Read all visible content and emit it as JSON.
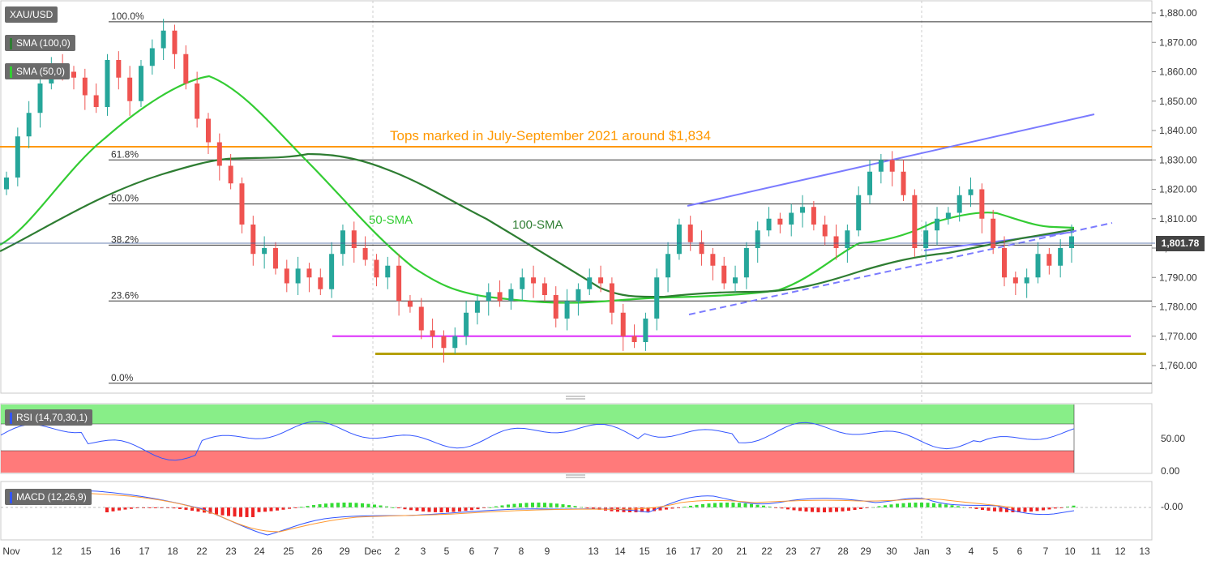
{
  "symbol": "XAU/USD",
  "indicators": {
    "sma100": "SMA (100,0)",
    "sma50": "SMA (50,0)",
    "rsi": "RSI (14,70,30,1)",
    "macd": "MACD (12,26,9)"
  },
  "current_price": "1,801.78",
  "annotations": {
    "tops": "Tops marked in July-September 2021 around $1,834",
    "sma50": "50-SMA",
    "sma100": "100-SMA"
  },
  "colors": {
    "up": "#26a69a",
    "down": "#ef5350",
    "sma50": "#33cc33",
    "sma100": "#2e7d32",
    "fib": "#333333",
    "orange": "#ff9800",
    "magenta": "#e040fb",
    "olive": "#b5a000",
    "trend": "#7b7bff",
    "rsi": "#3355ff"
  },
  "chart_data": {
    "type": "candlestick",
    "price_axis": {
      "ticks": [
        "1,880.00",
        "1,870.00",
        "1,860.00",
        "1,850.00",
        "1,840.00",
        "1,830.00",
        "1,820.00",
        "1,810.00",
        "1,800.00",
        "1,790.00",
        "1,780.00",
        "1,770.00",
        "1,760.00"
      ],
      "ylim": [
        1752,
        1882
      ]
    },
    "x_labels": [
      "Nov",
      "12",
      "15",
      "16",
      "17",
      "18",
      "22",
      "23",
      "24",
      "25",
      "26",
      "29",
      "Dec",
      "2",
      "3",
      "5",
      "6",
      "7",
      "8",
      "9",
      "13",
      "14",
      "15",
      "16",
      "17",
      "20",
      "21",
      "22",
      "23",
      "27",
      "28",
      "29",
      "30",
      "Jan",
      "3",
      "4",
      "5",
      "6",
      "7",
      "10",
      "11",
      "12",
      "13"
    ],
    "fib_levels": [
      {
        "label": "100.0%",
        "value": 1877
      },
      {
        "label": "61.8%",
        "value": 1830
      },
      {
        "label": "50.0%",
        "value": 1815
      },
      {
        "label": "38.2%",
        "value": 1801
      },
      {
        "label": "23.6%",
        "value": 1782
      },
      {
        "label": "0.0%",
        "value": 1754
      }
    ],
    "horizontal_lines": [
      {
        "name": "tops",
        "value": 1834.5
      },
      {
        "name": "support-magenta",
        "value": 1770
      },
      {
        "name": "support-olive",
        "value": 1764
      }
    ],
    "closes": [
      1824,
      1838,
      1846,
      1856,
      1862,
      1860,
      1858,
      1852,
      1848,
      1864,
      1858,
      1850,
      1862,
      1868,
      1874,
      1866,
      1856,
      1844,
      1836,
      1828,
      1822,
      1808,
      1798,
      1800,
      1793,
      1788,
      1793,
      1790,
      1786,
      1798,
      1806,
      1800,
      1796,
      1790,
      1794,
      1782,
      1780,
      1772,
      1770,
      1766,
      1770,
      1778,
      1782,
      1785,
      1782,
      1786,
      1790,
      1788,
      1784,
      1776,
      1782,
      1786,
      1790,
      1788,
      1778,
      1770,
      1768,
      1776,
      1790,
      1798,
      1808,
      1802,
      1798,
      1794,
      1788,
      1790,
      1800,
      1806,
      1810,
      1808,
      1812,
      1814,
      1808,
      1804,
      1800,
      1806,
      1818,
      1826,
      1830,
      1826,
      1818,
      1800,
      1806,
      1810,
      1812,
      1818,
      1820,
      1810,
      1800,
      1790,
      1788,
      1790,
      1798,
      1794,
      1800,
      1804
    ],
    "rsi": {
      "ylim": [
        0,
        100
      ],
      "ticks": [
        "50.00",
        "0.00"
      ],
      "overbought": 70,
      "oversold": 30
    },
    "macd": {
      "ticks": [
        "-0.00"
      ]
    }
  }
}
